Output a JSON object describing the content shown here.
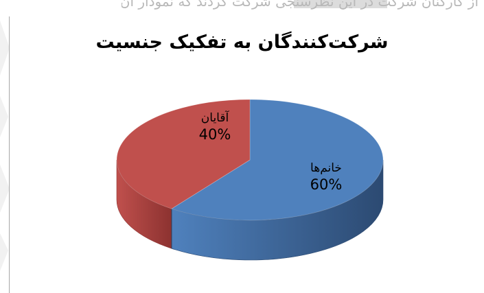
{
  "page": {
    "top_text": "از کارکنان شرکت در این نظرسنجی شرکت کردند که نمودار آن را در زیر مشاهده می‌کنید"
  },
  "chart_data": {
    "type": "pie",
    "title": "شرکت‌کنندگان به تفکیک جنسیت",
    "slices": [
      {
        "label": "خانم‌ها",
        "value": 60,
        "value_label": "60%",
        "color": "#4f81bd",
        "side_color": "#2c4a72"
      },
      {
        "label": "آقایان",
        "value": 40,
        "value_label": "40%",
        "color": "#c0504d",
        "side_color": "#8c3230"
      }
    ],
    "style": "3d",
    "legend": "none"
  }
}
